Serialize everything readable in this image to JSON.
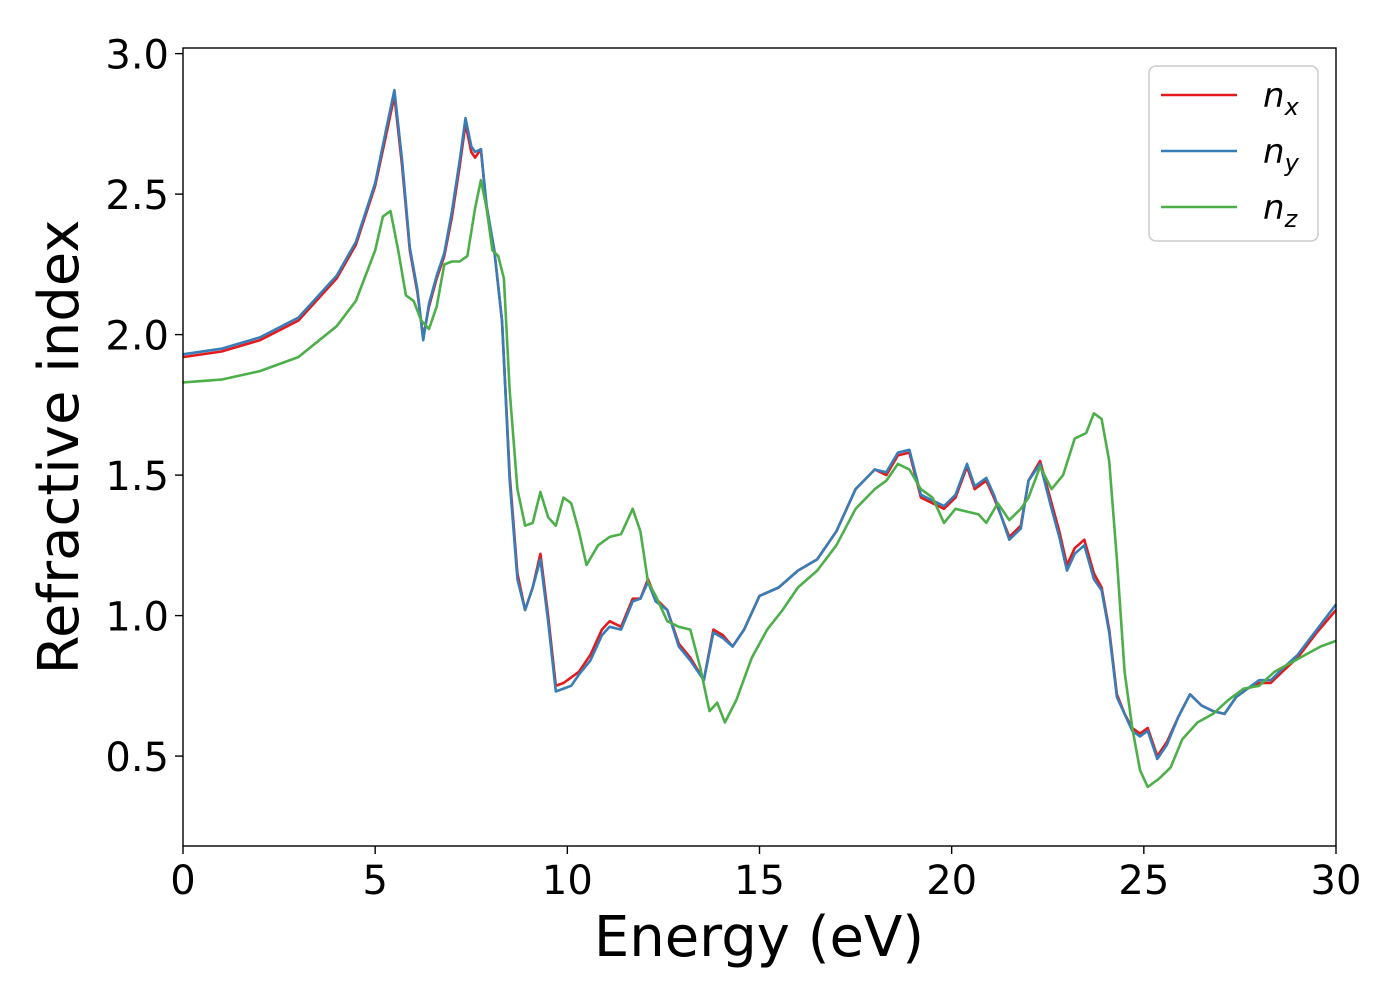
{
  "chart_data": {
    "type": "line",
    "title": "",
    "xlabel": "Energy (eV)",
    "ylabel": "Refractive index",
    "xlim": [
      0,
      30
    ],
    "ylim": [
      0.18,
      3.02
    ],
    "xticks": [
      0,
      5,
      10,
      15,
      20,
      25,
      30
    ],
    "xtick_labels": [
      "0",
      "5",
      "10",
      "15",
      "20",
      "25",
      "30"
    ],
    "yticks": [
      0.5,
      1.0,
      1.5,
      2.0,
      2.5,
      3.0
    ],
    "ytick_labels": [
      "0.5",
      "1.0",
      "1.5",
      "2.0",
      "2.5",
      "3.0"
    ],
    "grid": false,
    "legend_position": "top-right",
    "series": [
      {
        "name": "n_x",
        "legend_base": "n",
        "legend_sub": "x",
        "color": "#e41a1c",
        "x": [
          0,
          1,
          2,
          3,
          4,
          4.5,
          5,
          5.3,
          5.5,
          5.7,
          5.9,
          6.1,
          6.25,
          6.4,
          6.6,
          6.8,
          7.0,
          7.2,
          7.35,
          7.5,
          7.6,
          7.75,
          7.9,
          8.1,
          8.3,
          8.5,
          8.7,
          8.9,
          9.1,
          9.3,
          9.5,
          9.7,
          9.9,
          10.1,
          10.3,
          10.6,
          10.9,
          11.1,
          11.4,
          11.7,
          11.9,
          12.1,
          12.3,
          12.6,
          12.9,
          13.2,
          13.55,
          13.8,
          14.05,
          14.3,
          14.6,
          15.0,
          15.5,
          16.0,
          16.5,
          17.0,
          17.5,
          18.0,
          18.3,
          18.6,
          18.9,
          19.2,
          19.5,
          19.8,
          20.1,
          20.4,
          20.6,
          20.9,
          21.1,
          21.3,
          21.5,
          21.8,
          22.0,
          22.3,
          22.6,
          22.8,
          23.0,
          23.2,
          23.45,
          23.7,
          23.9,
          24.1,
          24.3,
          24.5,
          24.7,
          24.9,
          25.1,
          25.35,
          25.6,
          25.9,
          26.2,
          26.5,
          26.8,
          27.1,
          27.4,
          27.7,
          28.0,
          28.3,
          28.6,
          29.0,
          29.5,
          30.0
        ],
        "y": [
          1.92,
          1.94,
          1.98,
          2.05,
          2.2,
          2.32,
          2.53,
          2.72,
          2.85,
          2.6,
          2.3,
          2.15,
          1.99,
          2.1,
          2.2,
          2.28,
          2.42,
          2.6,
          2.75,
          2.65,
          2.63,
          2.66,
          2.45,
          2.3,
          2.05,
          1.5,
          1.15,
          1.02,
          1.1,
          1.22,
          1.0,
          0.75,
          0.76,
          0.78,
          0.8,
          0.86,
          0.95,
          0.98,
          0.96,
          1.06,
          1.06,
          1.13,
          1.06,
          1.02,
          0.9,
          0.85,
          0.77,
          0.95,
          0.93,
          0.89,
          0.95,
          1.07,
          1.1,
          1.16,
          1.2,
          1.3,
          1.45,
          1.52,
          1.5,
          1.57,
          1.58,
          1.42,
          1.4,
          1.38,
          1.42,
          1.53,
          1.45,
          1.48,
          1.42,
          1.35,
          1.28,
          1.32,
          1.48,
          1.55,
          1.4,
          1.3,
          1.18,
          1.24,
          1.27,
          1.15,
          1.1,
          0.95,
          0.72,
          0.65,
          0.6,
          0.58,
          0.6,
          0.5,
          0.55,
          0.64,
          0.72,
          0.68,
          0.66,
          0.65,
          0.71,
          0.74,
          0.76,
          0.76,
          0.8,
          0.85,
          0.94,
          1.02
        ]
      },
      {
        "name": "n_y",
        "legend_base": "n",
        "legend_sub": "y",
        "color": "#377eb8",
        "x": [
          0,
          1,
          2,
          3,
          4,
          4.5,
          5,
          5.3,
          5.5,
          5.7,
          5.9,
          6.1,
          6.25,
          6.4,
          6.6,
          6.8,
          7.0,
          7.2,
          7.35,
          7.5,
          7.6,
          7.75,
          7.9,
          8.1,
          8.3,
          8.5,
          8.7,
          8.9,
          9.1,
          9.3,
          9.5,
          9.7,
          9.9,
          10.1,
          10.3,
          10.6,
          10.9,
          11.1,
          11.4,
          11.7,
          11.9,
          12.1,
          12.3,
          12.6,
          12.9,
          13.2,
          13.55,
          13.8,
          14.05,
          14.3,
          14.6,
          15.0,
          15.5,
          16.0,
          16.5,
          17.0,
          17.5,
          18.0,
          18.3,
          18.6,
          18.9,
          19.2,
          19.5,
          19.8,
          20.1,
          20.4,
          20.6,
          20.9,
          21.1,
          21.3,
          21.5,
          21.8,
          22.0,
          22.3,
          22.6,
          22.8,
          23.0,
          23.2,
          23.45,
          23.7,
          23.9,
          24.1,
          24.3,
          24.5,
          24.7,
          24.9,
          25.1,
          25.35,
          25.6,
          25.9,
          26.2,
          26.5,
          26.8,
          27.1,
          27.4,
          27.7,
          28.0,
          28.3,
          28.6,
          29.0,
          29.5,
          30.0
        ],
        "y": [
          1.93,
          1.95,
          1.99,
          2.06,
          2.21,
          2.33,
          2.54,
          2.74,
          2.87,
          2.62,
          2.31,
          2.16,
          1.98,
          2.11,
          2.21,
          2.29,
          2.44,
          2.62,
          2.77,
          2.67,
          2.65,
          2.66,
          2.46,
          2.3,
          2.05,
          1.48,
          1.13,
          1.02,
          1.1,
          1.2,
          0.98,
          0.73,
          0.74,
          0.75,
          0.79,
          0.84,
          0.93,
          0.96,
          0.95,
          1.05,
          1.06,
          1.12,
          1.05,
          1.02,
          0.89,
          0.84,
          0.77,
          0.94,
          0.92,
          0.89,
          0.95,
          1.07,
          1.1,
          1.16,
          1.2,
          1.3,
          1.45,
          1.52,
          1.51,
          1.58,
          1.59,
          1.43,
          1.41,
          1.39,
          1.43,
          1.54,
          1.46,
          1.49,
          1.43,
          1.35,
          1.27,
          1.31,
          1.48,
          1.54,
          1.38,
          1.28,
          1.16,
          1.22,
          1.25,
          1.13,
          1.09,
          0.94,
          0.71,
          0.65,
          0.59,
          0.57,
          0.59,
          0.49,
          0.54,
          0.64,
          0.72,
          0.68,
          0.66,
          0.65,
          0.71,
          0.74,
          0.77,
          0.77,
          0.81,
          0.86,
          0.95,
          1.04
        ]
      },
      {
        "name": "n_z",
        "legend_base": "n",
        "legend_sub": "z",
        "color": "#4daf4a",
        "x": [
          0,
          1,
          2,
          3,
          4,
          4.5,
          5,
          5.2,
          5.4,
          5.6,
          5.8,
          6.0,
          6.2,
          6.4,
          6.6,
          6.8,
          7.0,
          7.2,
          7.4,
          7.6,
          7.75,
          7.9,
          8.05,
          8.2,
          8.35,
          8.5,
          8.7,
          8.9,
          9.1,
          9.3,
          9.5,
          9.7,
          9.9,
          10.1,
          10.3,
          10.5,
          10.8,
          11.1,
          11.4,
          11.7,
          11.9,
          12.1,
          12.3,
          12.6,
          12.9,
          13.2,
          13.45,
          13.7,
          13.9,
          14.1,
          14.4,
          14.8,
          15.2,
          15.6,
          16.0,
          16.5,
          17.0,
          17.5,
          18.0,
          18.3,
          18.6,
          18.9,
          19.2,
          19.5,
          19.8,
          20.1,
          20.4,
          20.7,
          20.9,
          21.2,
          21.5,
          21.8,
          22.0,
          22.3,
          22.6,
          22.9,
          23.2,
          23.5,
          23.7,
          23.9,
          24.1,
          24.3,
          24.5,
          24.7,
          24.9,
          25.1,
          25.4,
          25.7,
          26.0,
          26.4,
          26.8,
          27.2,
          27.6,
          28.0,
          28.4,
          28.8,
          29.2,
          29.6,
          30.0
        ],
        "y": [
          1.83,
          1.84,
          1.87,
          1.92,
          2.03,
          2.12,
          2.3,
          2.42,
          2.44,
          2.3,
          2.14,
          2.12,
          2.05,
          2.02,
          2.1,
          2.25,
          2.26,
          2.26,
          2.28,
          2.45,
          2.55,
          2.45,
          2.3,
          2.28,
          2.2,
          1.8,
          1.45,
          1.32,
          1.33,
          1.44,
          1.35,
          1.32,
          1.42,
          1.4,
          1.3,
          1.18,
          1.25,
          1.28,
          1.29,
          1.38,
          1.3,
          1.12,
          1.07,
          0.98,
          0.96,
          0.95,
          0.82,
          0.66,
          0.69,
          0.62,
          0.7,
          0.85,
          0.95,
          1.02,
          1.1,
          1.16,
          1.25,
          1.38,
          1.45,
          1.48,
          1.54,
          1.52,
          1.45,
          1.42,
          1.33,
          1.38,
          1.37,
          1.36,
          1.33,
          1.4,
          1.34,
          1.38,
          1.42,
          1.53,
          1.45,
          1.5,
          1.63,
          1.65,
          1.72,
          1.7,
          1.55,
          1.2,
          0.8,
          0.6,
          0.45,
          0.39,
          0.42,
          0.46,
          0.56,
          0.62,
          0.65,
          0.7,
          0.74,
          0.75,
          0.8,
          0.83,
          0.86,
          0.89,
          0.91
        ]
      }
    ]
  }
}
